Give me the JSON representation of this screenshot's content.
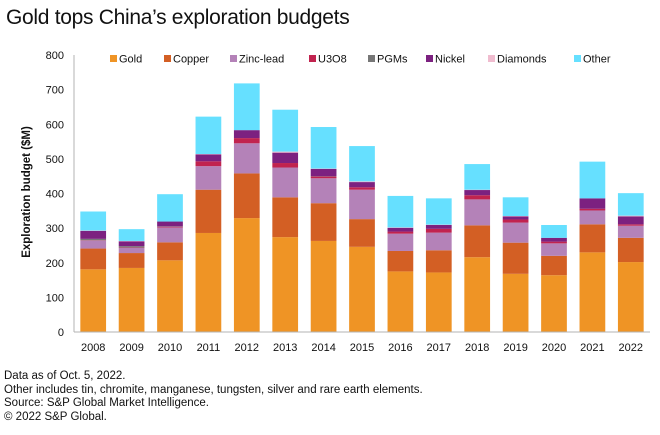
{
  "title": "Gold tops China’s exploration budgets",
  "notes": [
    "Data as of Oct. 5, 2022.",
    "Other includes tin, chromite, manganese, tungsten, silver and rare earth elements.",
    "Source: S&P Global Market Intelligence.",
    "© 2022 S&P Global."
  ],
  "chart_data": {
    "type": "bar",
    "stacked": true,
    "title": "Gold tops China’s exploration budgets",
    "xlabel": "",
    "ylabel": "Exploration budget ($M)",
    "ylim": [
      0,
      800
    ],
    "yticks": [
      0,
      100,
      200,
      300,
      400,
      500,
      600,
      700,
      800
    ],
    "grid": false,
    "legend_position": "top",
    "categories": [
      "2008",
      "2009",
      "2010",
      "2011",
      "2012",
      "2013",
      "2014",
      "2015",
      "2016",
      "2017",
      "2018",
      "2019",
      "2020",
      "2021",
      "2022"
    ],
    "series": [
      {
        "name": "Gold",
        "color": "#ef9425",
        "values": [
          181,
          185,
          207,
          286,
          329,
          274,
          263,
          246,
          175,
          172,
          216,
          168,
          164,
          230,
          202
        ]
      },
      {
        "name": "Copper",
        "color": "#d35f24",
        "values": [
          60,
          43,
          52,
          125,
          129,
          115,
          109,
          80,
          59,
          64,
          92,
          90,
          56,
          81,
          70
        ]
      },
      {
        "name": "Zinc-lead",
        "color": "#b482b8",
        "values": [
          23,
          15,
          43,
          68,
          87,
          86,
          72,
          85,
          50,
          51,
          75,
          58,
          36,
          40,
          35
        ]
      },
      {
        "name": "U3O8",
        "color": "#c1234f",
        "values": [
          1,
          1,
          2,
          14,
          15,
          13,
          5,
          7,
          6,
          11,
          12,
          9,
          5,
          5,
          4
        ]
      },
      {
        "name": "PGMs",
        "color": "#777777",
        "values": [
          4,
          4,
          1,
          0,
          0,
          0,
          1,
          0,
          0,
          0,
          0,
          0,
          0,
          0,
          0
        ]
      },
      {
        "name": "Nickel",
        "color": "#7c2180",
        "values": [
          23,
          14,
          14,
          20,
          23,
          30,
          21,
          15,
          11,
          11,
          15,
          9,
          11,
          30,
          23
        ]
      },
      {
        "name": "Diamonds",
        "color": "#f0bccf",
        "values": [
          1,
          1,
          0,
          1,
          0,
          3,
          1,
          2,
          1,
          1,
          1,
          1,
          0,
          0,
          2
        ]
      },
      {
        "name": "Other",
        "color": "#66e0ff",
        "values": [
          55,
          34,
          79,
          108,
          135,
          121,
          120,
          102,
          91,
          76,
          74,
          54,
          37,
          106,
          65
        ]
      }
    ]
  }
}
